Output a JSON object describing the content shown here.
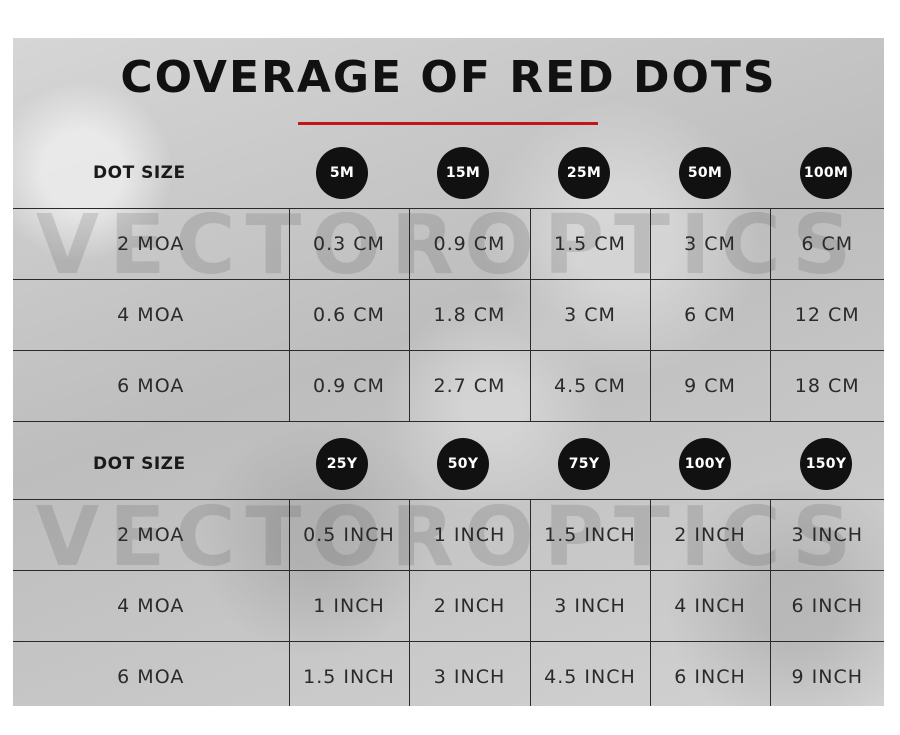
{
  "title": "COVERAGE OF RED DOTS",
  "watermark": "VECTOROPTICS",
  "metric_section": {
    "header_label": "DOT SIZE",
    "distances": [
      "5M",
      "15M",
      "25M",
      "50M",
      "100M"
    ],
    "rows": [
      {
        "label": "2 MOA",
        "values": [
          "0.3 CM",
          "0.9 CM",
          "1.5 CM",
          "3 CM",
          "6 CM"
        ]
      },
      {
        "label": "4 MOA",
        "values": [
          "0.6 CM",
          "1.8 CM",
          "3 CM",
          "6 CM",
          "12 CM"
        ]
      },
      {
        "label": "6 MOA",
        "values": [
          "0.9 CM",
          "2.7 CM",
          "4.5 CM",
          "9 CM",
          "18 CM"
        ]
      }
    ]
  },
  "imperial_section": {
    "header_label": "DOT SIZE",
    "distances": [
      "25Y",
      "50Y",
      "75Y",
      "100Y",
      "150Y"
    ],
    "rows": [
      {
        "label": "2 MOA",
        "values": [
          "0.5 INCH",
          "1 INCH",
          "1.5 INCH",
          "2 INCH",
          "3 INCH"
        ]
      },
      {
        "label": "4 MOA",
        "values": [
          "1 INCH",
          "2 INCH",
          "3 INCH",
          "4 INCH",
          "6 INCH"
        ]
      },
      {
        "label": "6 MOA",
        "values": [
          "1.5 INCH",
          "3 INCH",
          "4.5 INCH",
          "6 INCH",
          "9 INCH"
        ]
      }
    ]
  },
  "colors": {
    "accent": "#c0161b",
    "badge": "#111111",
    "background": "#c9c9c9"
  }
}
